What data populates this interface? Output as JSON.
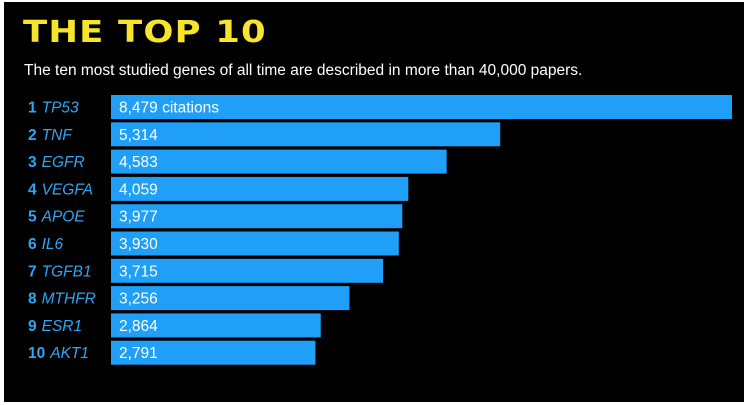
{
  "colors": {
    "background": "#000000",
    "title": "#f6e52b",
    "bar": "#1f9ff7",
    "label": "#2fa6f5",
    "text": "#ffffff"
  },
  "chart_data": {
    "type": "bar",
    "orientation": "horizontal",
    "title": "THE TOP 10",
    "subtitle": "The ten most studied genes of all time are described in more than 40,000 papers.",
    "ranks": [
      "1",
      "2",
      "3",
      "4",
      "5",
      "6",
      "7",
      "8",
      "9",
      "10"
    ],
    "categories": [
      "TP53",
      "TNF",
      "EGFR",
      "VEGFA",
      "APOE",
      "IL6",
      "TGFB1",
      "MTHFR",
      "ESR1",
      "AKT1"
    ],
    "values": [
      8479,
      5314,
      4583,
      4059,
      3977,
      3930,
      3715,
      3256,
      2864,
      2791
    ],
    "value_labels": [
      "8,479 citations",
      "5,314",
      "4,583",
      "4,059",
      "3,977",
      "3,930",
      "3,715",
      "3,256",
      "2,864",
      "2,791"
    ],
    "xlim": [
      0,
      8479
    ],
    "grid": false,
    "legend": "none"
  }
}
